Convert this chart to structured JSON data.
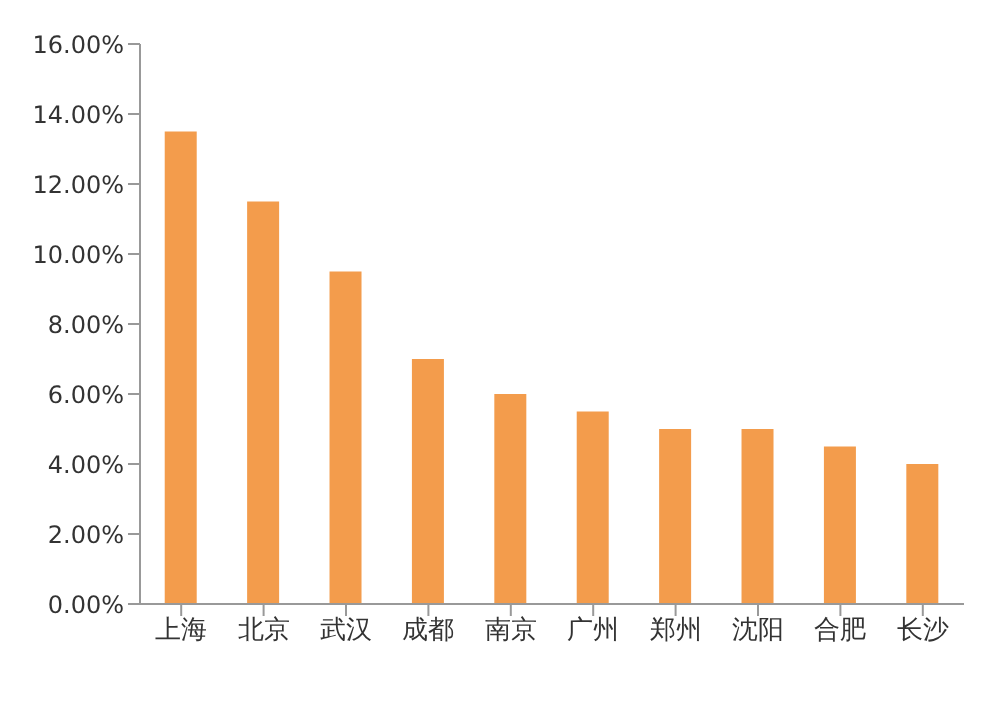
{
  "chart_data": {
    "type": "bar",
    "categories": [
      "上海",
      "北京",
      "武汉",
      "成都",
      "南京",
      "广州",
      "郑州",
      "沈阳",
      "合肥",
      "长沙"
    ],
    "values": [
      13.5,
      11.5,
      9.5,
      7.0,
      6.0,
      5.5,
      5.0,
      5.0,
      4.5,
      4.0
    ],
    "color": "#f39c4c",
    "ylim": [
      0,
      16
    ],
    "yticks": [
      {
        "value": 0,
        "label": "0.00%"
      },
      {
        "value": 2,
        "label": "2.00%"
      },
      {
        "value": 4,
        "label": "4.00%"
      },
      {
        "value": 6,
        "label": "6.00%"
      },
      {
        "value": 8,
        "label": "8.00%"
      },
      {
        "value": 10,
        "label": "10.00%"
      },
      {
        "value": 12,
        "label": "12.00%"
      },
      {
        "value": 14,
        "label": "14.00%"
      },
      {
        "value": 16,
        "label": "16.00%"
      }
    ],
    "grid": false,
    "legend": false
  }
}
